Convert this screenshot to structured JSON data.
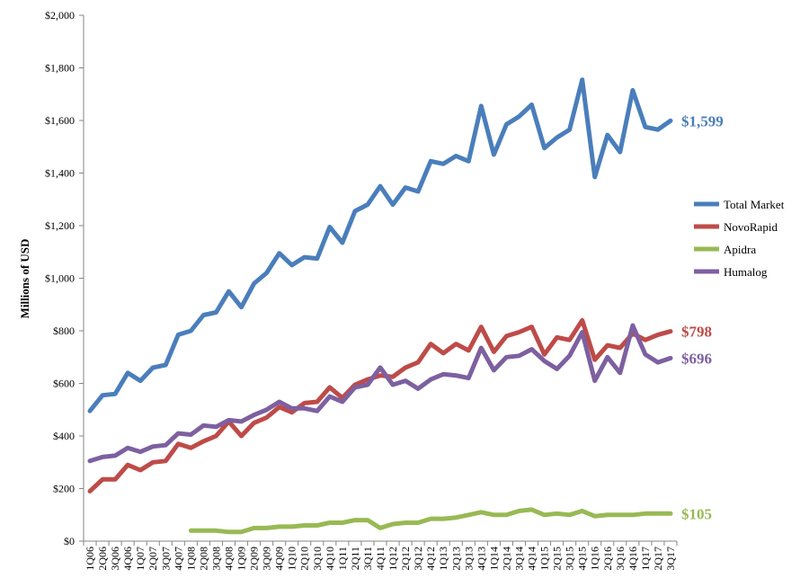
{
  "chart_data": {
    "type": "line",
    "title": "",
    "xlabel": "",
    "ylabel": "Millions of USD",
    "ylim": [
      0,
      2000
    ],
    "yticks": [
      "$0",
      "$200",
      "$400",
      "$600",
      "$800",
      "$1,000",
      "$1,200",
      "$1,400",
      "$1,600",
      "$1,800",
      "$2,000"
    ],
    "grid": false,
    "legend_position": "right",
    "categories": [
      "1Q06",
      "2Q06",
      "3Q06",
      "4Q06",
      "1Q07",
      "2Q07",
      "3Q07",
      "4Q07",
      "1Q08",
      "2Q08",
      "3Q08",
      "4Q08",
      "1Q09",
      "2Q09",
      "3Q09",
      "4Q09",
      "1Q10",
      "2Q10",
      "3Q10",
      "4Q10",
      "1Q11",
      "2Q11",
      "3Q11",
      "4Q11",
      "1Q12",
      "2Q12",
      "3Q12",
      "4Q12",
      "1Q13",
      "2Q13",
      "3Q13",
      "4Q13",
      "1Q14",
      "2Q14",
      "3Q14",
      "4Q14",
      "1Q15",
      "2Q15",
      "3Q15",
      "4Q15",
      "1Q16",
      "2Q16",
      "3Q16",
      "4Q16",
      "1Q17",
      "2Q17",
      "3Q17"
    ],
    "series": [
      {
        "name": "Total Market",
        "color": "#4a7ebb",
        "end_label": "$1,599",
        "values": [
          495,
          555,
          560,
          640,
          610,
          660,
          670,
          785,
          800,
          860,
          870,
          950,
          890,
          980,
          1020,
          1095,
          1050,
          1080,
          1075,
          1195,
          1135,
          1255,
          1280,
          1350,
          1280,
          1345,
          1330,
          1445,
          1435,
          1465,
          1445,
          1655,
          1470,
          1585,
          1615,
          1660,
          1495,
          1535,
          1565,
          1755,
          1385,
          1545,
          1480,
          1715,
          1575,
          1565,
          1599
        ]
      },
      {
        "name": "NovoRapid",
        "color": "#be4b48",
        "end_label": "$798",
        "values": [
          190,
          235,
          235,
          290,
          270,
          300,
          305,
          370,
          355,
          380,
          400,
          455,
          400,
          450,
          470,
          510,
          490,
          525,
          530,
          585,
          545,
          595,
          615,
          630,
          625,
          660,
          680,
          750,
          715,
          750,
          725,
          815,
          720,
          780,
          795,
          815,
          710,
          775,
          765,
          840,
          690,
          745,
          735,
          790,
          765,
          785,
          798
        ]
      },
      {
        "name": "Apidra",
        "color": "#98b954",
        "end_label": "$105",
        "values": [
          null,
          null,
          null,
          null,
          null,
          null,
          null,
          null,
          40,
          40,
          40,
          35,
          35,
          50,
          50,
          55,
          55,
          60,
          60,
          70,
          70,
          80,
          80,
          50,
          65,
          70,
          70,
          85,
          85,
          90,
          100,
          110,
          100,
          100,
          115,
          120,
          100,
          105,
          100,
          115,
          95,
          100,
          100,
          100,
          105,
          105,
          105
        ]
      },
      {
        "name": "Humalog",
        "color": "#7d60a0",
        "end_label": "$696",
        "values": [
          305,
          320,
          325,
          355,
          340,
          360,
          365,
          410,
          405,
          440,
          435,
          460,
          455,
          480,
          500,
          530,
          505,
          505,
          495,
          550,
          530,
          585,
          595,
          660,
          595,
          610,
          580,
          615,
          635,
          630,
          620,
          735,
          650,
          700,
          705,
          730,
          685,
          655,
          705,
          795,
          610,
          700,
          640,
          820,
          710,
          680,
          696
        ]
      }
    ]
  }
}
